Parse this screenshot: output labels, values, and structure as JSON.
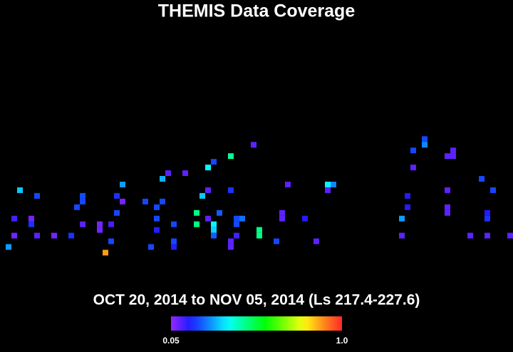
{
  "chart_data": {
    "type": "heatmap",
    "title": "THEMIS Data Coverage",
    "subtitle": "OCT 20, 2014 to NOV 05, 2014 (Ls 217.4-227.6)",
    "x": [
      3,
      6,
      2,
      5,
      5,
      2,
      6,
      9,
      12,
      1,
      14,
      14,
      13,
      14,
      17,
      17,
      19,
      20,
      21,
      21,
      20,
      19,
      18,
      25,
      27,
      27,
      27,
      26,
      28,
      29,
      28,
      30,
      30,
      30,
      32,
      34,
      34,
      35,
      36,
      36,
      37,
      40,
      36,
      37,
      37,
      37,
      38,
      40,
      41,
      42,
      41,
      41,
      40,
      40,
      44,
      45,
      45,
      48,
      49,
      49,
      50,
      53,
      55,
      57,
      58,
      57,
      70,
      70,
      71,
      71,
      72,
      72,
      74,
      74,
      78,
      79,
      79,
      78,
      78,
      78,
      82,
      84,
      85,
      85,
      85,
      86,
      89
    ],
    "y": [
      33,
      34,
      38,
      38,
      39,
      41,
      41,
      41,
      41,
      43,
      34,
      35,
      36,
      39,
      39,
      40,
      39,
      34,
      32,
      35,
      37,
      42,
      44,
      35,
      36,
      38,
      40,
      43,
      31,
      30,
      35,
      39,
      42,
      43,
      30,
      37,
      39,
      34,
      33,
      29,
      28,
      27,
      38,
      39,
      40,
      41,
      37,
      33,
      38,
      38,
      39,
      41,
      42,
      43,
      25,
      40,
      41,
      42,
      37,
      38,
      32,
      38,
      42,
      32,
      32,
      33,
      38,
      41,
      34,
      36,
      26,
      29,
      24,
      25,
      27,
      26,
      27,
      33,
      36,
      37,
      41,
      31,
      37,
      38,
      41,
      33,
      41
    ],
    "values": [
      0.32,
      0.2,
      0.12,
      0.08,
      0.18,
      0.08,
      0.1,
      0.08,
      0.18,
      0.28,
      0.2,
      0.2,
      0.2,
      0.1,
      0.08,
      0.08,
      0.12,
      0.18,
      0.28,
      0.08,
      0.2,
      0.2,
      0.88,
      0.2,
      0.2,
      0.2,
      0.15,
      0.2,
      0.3,
      0.1,
      0.2,
      0.2,
      0.2,
      0.15,
      0.1,
      0.47,
      0.47,
      0.32,
      0.1,
      0.36,
      0.2,
      0.45,
      0.1,
      0.36,
      0.33,
      0.22,
      0.22,
      0.18,
      0.2,
      0.24,
      0.2,
      0.12,
      0.1,
      0.1,
      0.1,
      0.47,
      0.47,
      0.2,
      0.1,
      0.1,
      0.1,
      0.15,
      0.1,
      0.36,
      0.26,
      0.1,
      0.28,
      0.1,
      0.15,
      0.15,
      0.2,
      0.1,
      0.2,
      0.26,
      0.1,
      0.1,
      0.1,
      0.1,
      0.1,
      0.1,
      0.1,
      0.2,
      0.15,
      0.18,
      0.1,
      0.2,
      0.1
    ],
    "xlim": [
      0,
      90
    ],
    "ylim": [
      0,
      62
    ],
    "colorbar": {
      "lim": [
        0.05,
        1
      ],
      "ticks": [
        0.05,
        {
          "value": 1,
          "label": "1.0"
        }
      ]
    }
  }
}
